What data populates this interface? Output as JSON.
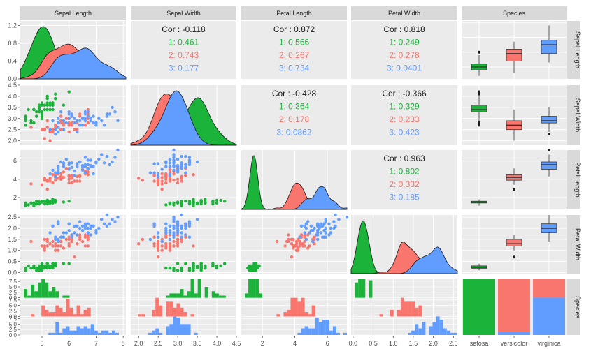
{
  "colors": {
    "setosa": "#1cb33b",
    "versicolor": "#f8766d",
    "virginica": "#619cff",
    "panel": "#ebebeb",
    "strip": "#d9d9d9",
    "grid_major": "#ffffff",
    "grid_minor": "#f5f5f5",
    "cor_overall": "#1a1a1a"
  },
  "variables": [
    "Sepal.Length",
    "Sepal.Width",
    "Petal.Length",
    "Petal.Width",
    "Species"
  ],
  "chart_data": {
    "type": "scatter-matrix",
    "variables": [
      "Sepal.Length",
      "Sepal.Width",
      "Petal.Length",
      "Petal.Width",
      "Species"
    ],
    "groups": [
      "setosa",
      "versicolor",
      "virginica"
    ],
    "axes": {
      "Sepal.Length": {
        "range": [
          4.2,
          8.1
        ],
        "ticks": [
          5,
          6,
          7,
          8
        ],
        "ticklabels": [
          "5",
          "6",
          "7",
          "8"
        ]
      },
      "Sepal.Width": {
        "range": [
          1.8,
          4.5
        ],
        "ticks": [
          2.0,
          2.5,
          3.0,
          3.5,
          4.0,
          4.5
        ],
        "ticklabels": [
          "2.0",
          "2.5",
          "3.0",
          "3.5",
          "4.0",
          "4.5"
        ]
      },
      "Petal.Length": {
        "range": [
          0.7,
          7.2
        ],
        "ticks": [
          2,
          4,
          6
        ],
        "ticklabels": [
          "2",
          "4",
          "6"
        ]
      },
      "Petal.Width": {
        "range": [
          -0.05,
          2.6
        ],
        "ticks": [
          0.0,
          0.5,
          1.0,
          1.5,
          2.0,
          2.5
        ],
        "ticklabels": [
          "0.0",
          "0.5",
          "1.0",
          "1.5",
          "2.0",
          "2.5"
        ]
      },
      "Species": {
        "categories": [
          "setosa",
          "versicolor",
          "virginica"
        ]
      }
    },
    "density_y_ticks": {
      "Sepal.Length": {
        "range": [
          0,
          1.3
        ],
        "ticks": [
          0.0,
          0.4,
          0.8,
          1.2
        ],
        "ticklabels": [
          "0.0",
          "0.4",
          "0.8",
          "1.2"
        ]
      }
    },
    "species_row_ticks": {
      "ticks": [
        "0.0",
        "2.5",
        "5.0",
        "7.5"
      ]
    },
    "correlations": [
      {
        "row": "Sepal.Length",
        "col": "Sepal.Width",
        "overall": "Cor : -0.118",
        "groups": [
          "1: 0.461",
          "2: 0.743",
          "3: 0.177"
        ]
      },
      {
        "row": "Sepal.Length",
        "col": "Petal.Length",
        "overall": "Cor : 0.872",
        "groups": [
          "1: 0.566",
          "2: 0.267",
          "3: 0.734"
        ]
      },
      {
        "row": "Sepal.Length",
        "col": "Petal.Width",
        "overall": "Cor : 0.818",
        "groups": [
          "1: 0.249",
          "2: 0.278",
          "3: 0.0401"
        ]
      },
      {
        "row": "Sepal.Width",
        "col": "Petal.Length",
        "overall": "Cor : -0.428",
        "groups": [
          "1: 0.364",
          "2: 0.178",
          "3: 0.0862"
        ]
      },
      {
        "row": "Sepal.Width",
        "col": "Petal.Width",
        "overall": "Cor : -0.366",
        "groups": [
          "1: 0.329",
          "2: 0.233",
          "3: 0.423"
        ]
      },
      {
        "row": "Petal.Length",
        "col": "Petal.Width",
        "overall": "Cor : 0.963",
        "groups": [
          "1: 0.802",
          "2: 0.332",
          "3: 0.185"
        ]
      }
    ],
    "species_proportions": {
      "setosa": {
        "setosa": 1.0
      },
      "versicolor": {
        "versicolor": 0.95,
        "virginica": 0.05
      },
      "virginica": {
        "versicolor": 0.33,
        "virginica": 0.67
      }
    }
  }
}
